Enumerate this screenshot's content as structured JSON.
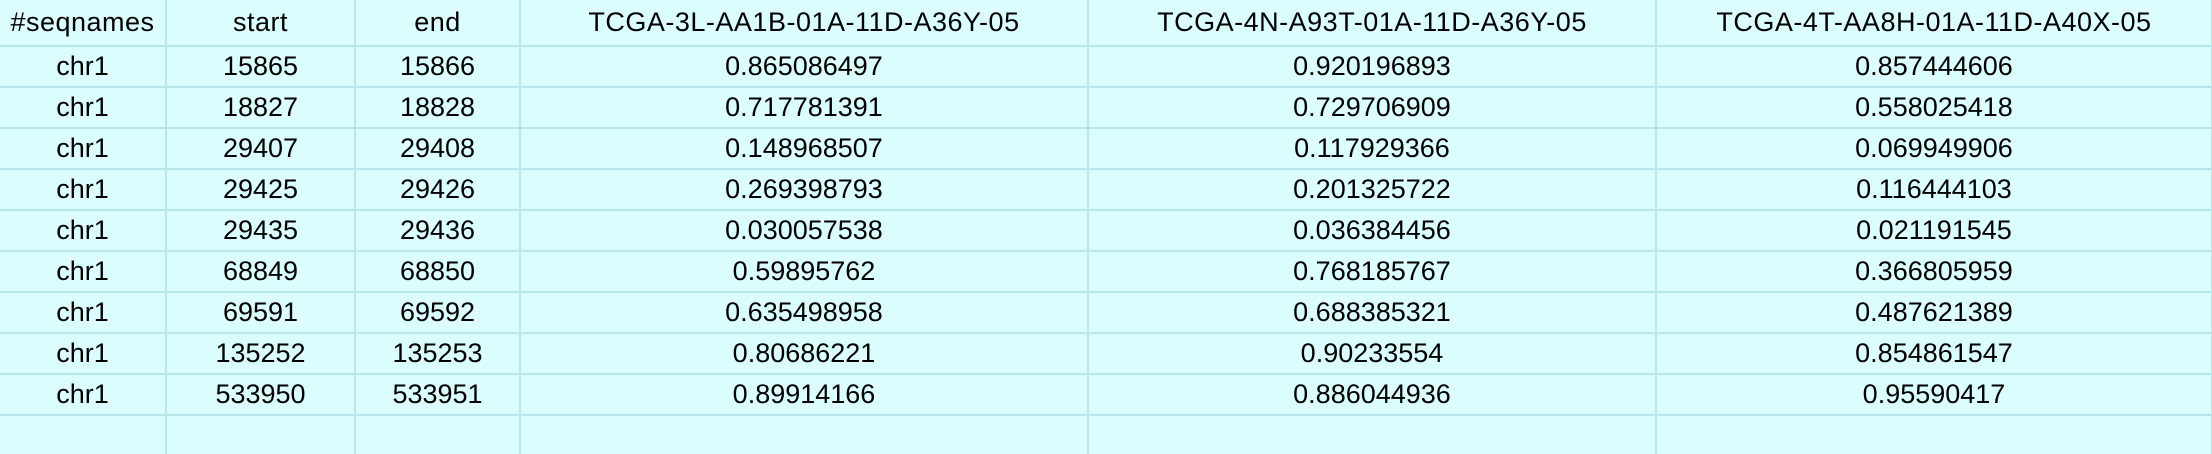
{
  "spreadsheet": {
    "headers": [
      "#seqnames",
      "start",
      "end",
      "TCGA-3L-AA1B-01A-11D-A36Y-05",
      "TCGA-4N-A93T-01A-11D-A36Y-05",
      "TCGA-4T-AA8H-01A-11D-A40X-05"
    ],
    "rows": [
      [
        "chr1",
        "15865",
        "15866",
        "0.865086497",
        "0.920196893",
        "0.857444606"
      ],
      [
        "chr1",
        "18827",
        "18828",
        "0.717781391",
        "0.729706909",
        "0.558025418"
      ],
      [
        "chr1",
        "29407",
        "29408",
        "0.148968507",
        "0.117929366",
        "0.069949906"
      ],
      [
        "chr1",
        "29425",
        "29426",
        "0.269398793",
        "0.201325722",
        "0.116444103"
      ],
      [
        "chr1",
        "29435",
        "29436",
        "0.030057538",
        "0.036384456",
        "0.021191545"
      ],
      [
        "chr1",
        "68849",
        "68850",
        "0.59895762",
        "0.768185767",
        "0.366805959"
      ],
      [
        "chr1",
        "69591",
        "69592",
        "0.635498958",
        "0.688385321",
        "0.487621389"
      ],
      [
        "chr1",
        "135252",
        "135253",
        "0.80686221",
        "0.90233554",
        "0.854861547"
      ],
      [
        "chr1",
        "533950",
        "533951",
        "0.89914166",
        "0.886044936",
        "0.95590417"
      ]
    ],
    "colors": {
      "cell_background": "#dcfdfe",
      "gridline": "#b8e6ec",
      "text": "#000000"
    }
  }
}
